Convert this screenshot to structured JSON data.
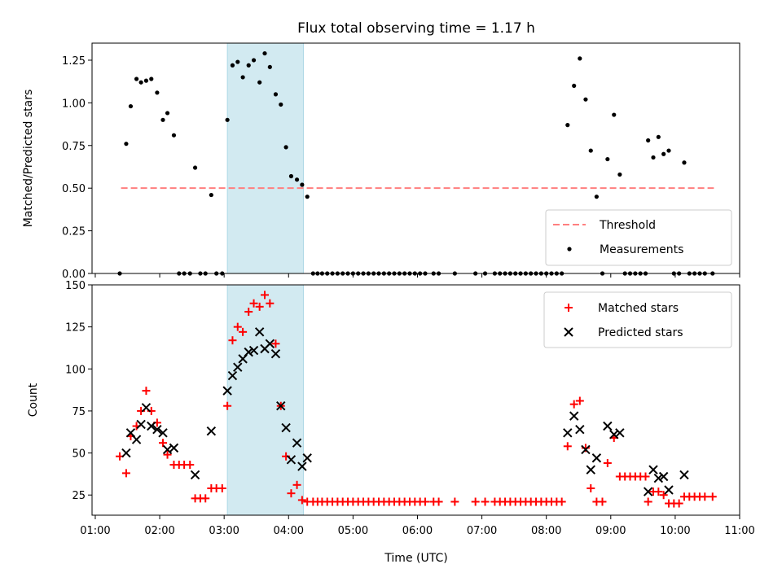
{
  "title": "Flux total observing time = 1.17 h",
  "colors": {
    "threshold": "#ff7f7f",
    "measurement": "#000000",
    "matched": "#ff0000",
    "predicted": "#000000",
    "shade": "#add8e6"
  },
  "chart_data": [
    {
      "type": "scatter",
      "name": "top",
      "xlim": [
        0.95,
        11.0
      ],
      "ylim": [
        0.0,
        1.35
      ],
      "ylabel": "Matched/Predicted stars",
      "yticks": [
        0.0,
        0.25,
        0.5,
        0.75,
        1.0,
        1.25
      ],
      "ytick_labels": [
        "0.00",
        "0.25",
        "0.50",
        "0.75",
        "1.00",
        "1.25"
      ],
      "shaded_region": [
        3.05,
        4.23
      ],
      "threshold": {
        "label": "Threshold",
        "y": 0.5,
        "x": [
          1.4,
          10.6
        ],
        "style": "dashed"
      },
      "measurements": {
        "label": "Measurements",
        "points": [
          [
            1.38,
            0.0
          ],
          [
            1.48,
            0.76
          ],
          [
            1.55,
            0.98
          ],
          [
            1.64,
            1.14
          ],
          [
            1.71,
            1.12
          ],
          [
            1.79,
            1.13
          ],
          [
            1.87,
            1.14
          ],
          [
            1.96,
            1.06
          ],
          [
            2.05,
            0.9
          ],
          [
            2.12,
            0.94
          ],
          [
            2.22,
            0.81
          ],
          [
            2.3,
            0.0
          ],
          [
            2.38,
            0.0
          ],
          [
            2.47,
            0.0
          ],
          [
            2.55,
            0.62
          ],
          [
            2.63,
            0.0
          ],
          [
            2.71,
            0.0
          ],
          [
            2.8,
            0.46
          ],
          [
            2.88,
            0.0
          ],
          [
            2.97,
            0.0
          ],
          [
            3.05,
            0.9
          ],
          [
            3.13,
            1.22
          ],
          [
            3.21,
            1.24
          ],
          [
            3.29,
            1.15
          ],
          [
            3.38,
            1.22
          ],
          [
            3.46,
            1.25
          ],
          [
            3.55,
            1.12
          ],
          [
            3.63,
            1.29
          ],
          [
            3.71,
            1.21
          ],
          [
            3.8,
            1.05
          ],
          [
            3.88,
            0.99
          ],
          [
            3.96,
            0.74
          ],
          [
            4.04,
            0.57
          ],
          [
            4.13,
            0.55
          ],
          [
            4.21,
            0.52
          ],
          [
            4.29,
            0.45
          ],
          [
            4.38,
            0.0
          ],
          [
            4.45,
            0.0
          ],
          [
            4.52,
            0.0
          ],
          [
            4.6,
            0.0
          ],
          [
            4.68,
            0.0
          ],
          [
            4.76,
            0.0
          ],
          [
            4.84,
            0.0
          ],
          [
            4.92,
            0.0
          ],
          [
            5.0,
            0.0
          ],
          [
            5.08,
            0.0
          ],
          [
            5.16,
            0.0
          ],
          [
            5.24,
            0.0
          ],
          [
            5.32,
            0.0
          ],
          [
            5.4,
            0.0
          ],
          [
            5.48,
            0.0
          ],
          [
            5.56,
            0.0
          ],
          [
            5.64,
            0.0
          ],
          [
            5.72,
            0.0
          ],
          [
            5.8,
            0.0
          ],
          [
            5.88,
            0.0
          ],
          [
            5.96,
            0.0
          ],
          [
            6.04,
            0.0
          ],
          [
            6.12,
            0.0
          ],
          [
            6.25,
            0.0
          ],
          [
            6.33,
            0.0
          ],
          [
            6.58,
            0.0
          ],
          [
            6.9,
            0.0
          ],
          [
            7.05,
            0.0
          ],
          [
            7.2,
            0.0
          ],
          [
            7.28,
            0.0
          ],
          [
            7.36,
            0.0
          ],
          [
            7.44,
            0.0
          ],
          [
            7.52,
            0.0
          ],
          [
            7.6,
            0.0
          ],
          [
            7.68,
            0.0
          ],
          [
            7.76,
            0.0
          ],
          [
            7.84,
            0.0
          ],
          [
            7.92,
            0.0
          ],
          [
            8.0,
            0.0
          ],
          [
            8.08,
            0.0
          ],
          [
            8.16,
            0.0
          ],
          [
            8.24,
            0.0
          ],
          [
            8.33,
            0.87
          ],
          [
            8.43,
            1.1
          ],
          [
            8.52,
            1.26
          ],
          [
            8.61,
            1.02
          ],
          [
            8.69,
            0.72
          ],
          [
            8.78,
            0.45
          ],
          [
            8.87,
            0.0
          ],
          [
            8.95,
            0.67
          ],
          [
            9.05,
            0.93
          ],
          [
            9.14,
            0.58
          ],
          [
            9.22,
            0.0
          ],
          [
            9.3,
            0.0
          ],
          [
            9.38,
            0.0
          ],
          [
            9.46,
            0.0
          ],
          [
            9.54,
            0.0
          ],
          [
            9.58,
            0.78
          ],
          [
            9.66,
            0.68
          ],
          [
            9.74,
            0.8
          ],
          [
            9.82,
            0.7
          ],
          [
            9.9,
            0.72
          ],
          [
            9.98,
            0.0
          ],
          [
            10.06,
            0.0
          ],
          [
            10.14,
            0.65
          ],
          [
            10.22,
            0.0
          ],
          [
            10.3,
            0.0
          ],
          [
            10.38,
            0.0
          ],
          [
            10.46,
            0.0
          ],
          [
            10.58,
            0.0
          ]
        ]
      }
    },
    {
      "type": "scatter",
      "name": "bottom",
      "xlim": [
        0.95,
        11.0
      ],
      "ylim": [
        13,
        150
      ],
      "xlabel": "Time (UTC)",
      "ylabel": "Count",
      "xticks": [
        1,
        2,
        3,
        4,
        5,
        6,
        7,
        8,
        9,
        10,
        11
      ],
      "xtick_labels": [
        "01:00",
        "02:00",
        "03:00",
        "04:00",
        "05:00",
        "06:00",
        "07:00",
        "08:00",
        "09:00",
        "10:00",
        "11:00"
      ],
      "yticks": [
        25,
        50,
        75,
        100,
        125,
        150
      ],
      "ytick_labels": [
        "25",
        "50",
        "75",
        "100",
        "125",
        "150"
      ],
      "shaded_region": [
        3.05,
        4.23
      ],
      "matched": {
        "label": "Matched stars",
        "marker": "+",
        "points": [
          [
            1.38,
            48
          ],
          [
            1.48,
            38
          ],
          [
            1.55,
            60
          ],
          [
            1.64,
            66
          ],
          [
            1.71,
            75
          ],
          [
            1.79,
            87
          ],
          [
            1.87,
            75
          ],
          [
            1.96,
            68
          ],
          [
            2.05,
            56
          ],
          [
            2.12,
            49
          ],
          [
            2.22,
            43
          ],
          [
            2.3,
            43
          ],
          [
            2.38,
            43
          ],
          [
            2.47,
            43
          ],
          [
            2.55,
            23
          ],
          [
            2.63,
            23
          ],
          [
            2.71,
            23
          ],
          [
            2.8,
            29
          ],
          [
            2.88,
            29
          ],
          [
            2.97,
            29
          ],
          [
            3.05,
            78
          ],
          [
            3.13,
            117
          ],
          [
            3.21,
            125
          ],
          [
            3.29,
            122
          ],
          [
            3.38,
            134
          ],
          [
            3.46,
            139
          ],
          [
            3.55,
            137
          ],
          [
            3.63,
            144
          ],
          [
            3.71,
            139
          ],
          [
            3.8,
            115
          ],
          [
            3.88,
            78
          ],
          [
            3.96,
            48
          ],
          [
            4.04,
            26
          ],
          [
            4.13,
            31
          ],
          [
            4.21,
            22
          ],
          [
            4.29,
            21
          ],
          [
            4.38,
            21
          ],
          [
            4.45,
            21
          ],
          [
            4.52,
            21
          ],
          [
            4.6,
            21
          ],
          [
            4.68,
            21
          ],
          [
            4.76,
            21
          ],
          [
            4.84,
            21
          ],
          [
            4.92,
            21
          ],
          [
            5.0,
            21
          ],
          [
            5.08,
            21
          ],
          [
            5.16,
            21
          ],
          [
            5.24,
            21
          ],
          [
            5.32,
            21
          ],
          [
            5.4,
            21
          ],
          [
            5.48,
            21
          ],
          [
            5.56,
            21
          ],
          [
            5.64,
            21
          ],
          [
            5.72,
            21
          ],
          [
            5.8,
            21
          ],
          [
            5.88,
            21
          ],
          [
            5.96,
            21
          ],
          [
            6.04,
            21
          ],
          [
            6.12,
            21
          ],
          [
            6.25,
            21
          ],
          [
            6.33,
            21
          ],
          [
            6.58,
            21
          ],
          [
            6.9,
            21
          ],
          [
            7.05,
            21
          ],
          [
            7.2,
            21
          ],
          [
            7.28,
            21
          ],
          [
            7.36,
            21
          ],
          [
            7.44,
            21
          ],
          [
            7.52,
            21
          ],
          [
            7.6,
            21
          ],
          [
            7.68,
            21
          ],
          [
            7.76,
            21
          ],
          [
            7.84,
            21
          ],
          [
            7.92,
            21
          ],
          [
            8.0,
            21
          ],
          [
            8.08,
            21
          ],
          [
            8.16,
            21
          ],
          [
            8.24,
            21
          ],
          [
            8.33,
            54
          ],
          [
            8.43,
            79
          ],
          [
            8.52,
            81
          ],
          [
            8.61,
            53
          ],
          [
            8.69,
            29
          ],
          [
            8.78,
            21
          ],
          [
            8.87,
            21
          ],
          [
            8.95,
            44
          ],
          [
            9.05,
            59
          ],
          [
            9.14,
            36
          ],
          [
            9.22,
            36
          ],
          [
            9.3,
            36
          ],
          [
            9.38,
            36
          ],
          [
            9.46,
            36
          ],
          [
            9.54,
            36
          ],
          [
            9.58,
            21
          ],
          [
            9.66,
            27
          ],
          [
            9.74,
            27
          ],
          [
            9.82,
            25
          ],
          [
            9.9,
            20
          ],
          [
            9.98,
            20
          ],
          [
            10.06,
            20
          ],
          [
            10.14,
            24
          ],
          [
            10.22,
            24
          ],
          [
            10.3,
            24
          ],
          [
            10.38,
            24
          ],
          [
            10.46,
            24
          ],
          [
            10.58,
            24
          ]
        ]
      },
      "predicted": {
        "label": "Predicted stars",
        "marker": "x",
        "points": [
          [
            1.48,
            50
          ],
          [
            1.55,
            62
          ],
          [
            1.64,
            58
          ],
          [
            1.71,
            67
          ],
          [
            1.79,
            77
          ],
          [
            1.87,
            66
          ],
          [
            1.96,
            64
          ],
          [
            2.05,
            62
          ],
          [
            2.12,
            52
          ],
          [
            2.22,
            53
          ],
          [
            2.55,
            37
          ],
          [
            2.8,
            63
          ],
          [
            3.05,
            87
          ],
          [
            3.13,
            96
          ],
          [
            3.21,
            101
          ],
          [
            3.29,
            106
          ],
          [
            3.38,
            110
          ],
          [
            3.46,
            111
          ],
          [
            3.55,
            122
          ],
          [
            3.63,
            112
          ],
          [
            3.71,
            115
          ],
          [
            3.8,
            109
          ],
          [
            3.88,
            78
          ],
          [
            3.96,
            65
          ],
          [
            4.04,
            46
          ],
          [
            4.13,
            56
          ],
          [
            4.21,
            42
          ],
          [
            4.29,
            47
          ],
          [
            8.33,
            62
          ],
          [
            8.43,
            72
          ],
          [
            8.52,
            64
          ],
          [
            8.61,
            52
          ],
          [
            8.69,
            40
          ],
          [
            8.78,
            47
          ],
          [
            8.95,
            66
          ],
          [
            9.05,
            61
          ],
          [
            9.14,
            62
          ],
          [
            9.58,
            27
          ],
          [
            9.66,
            40
          ],
          [
            9.74,
            35
          ],
          [
            9.82,
            36
          ],
          [
            9.9,
            28
          ],
          [
            10.14,
            37
          ]
        ]
      }
    }
  ]
}
